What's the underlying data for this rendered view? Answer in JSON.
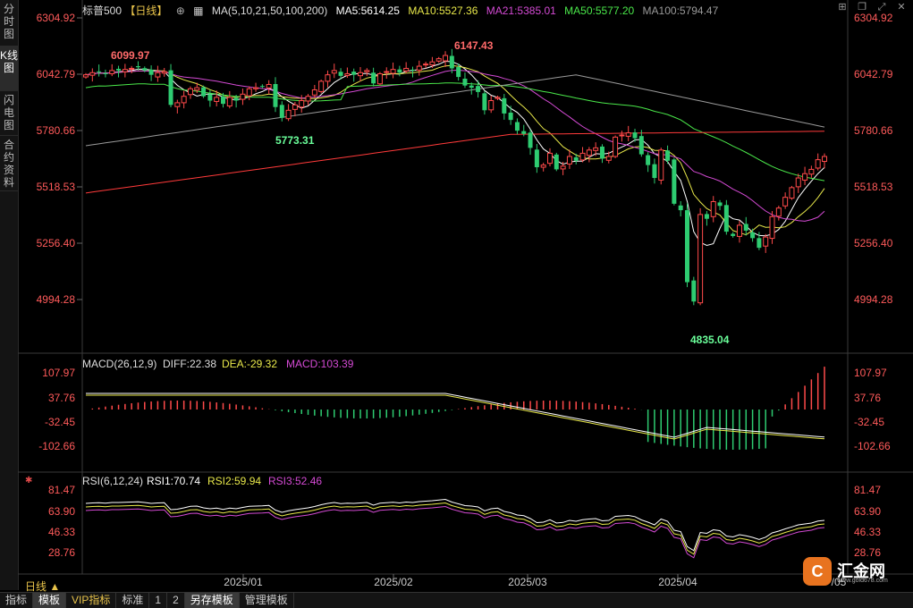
{
  "sidebar": {
    "tabs": [
      {
        "label": "分时图",
        "active": false
      },
      {
        "label": "K线图",
        "active": true
      },
      {
        "label": "闪电图",
        "active": false
      },
      {
        "label": "合约资料",
        "active": false
      }
    ]
  },
  "header": {
    "symbol": "标普500",
    "period": "【日线】",
    "ma_label": "MA(5,10,21,50,100,200)",
    "ma5": "MA5:5614.25",
    "ma10": "MA10:5527.36",
    "ma21": "MA21:5385.01",
    "ma50": "MA50:5577.20",
    "ma100": "MA100:5794.47"
  },
  "colors": {
    "up": "#ff4a4a",
    "down": "#2ecc71",
    "ma5": "#ffffff",
    "ma10": "#e8e84a",
    "ma21": "#d44ad4",
    "ma50": "#4ae84a",
    "ma100": "#9a9a9a",
    "ma200": "#ff3a3a",
    "axis": "#ff5a5a"
  },
  "price_axis": [
    "6304.92",
    "6042.79",
    "5780.66",
    "5518.53",
    "5256.40",
    "4994.28"
  ],
  "annotations": {
    "high1": "6099.97",
    "high2": "6147.43",
    "low1": "5773.31",
    "low2": "4835.04"
  },
  "macd": {
    "label": "MACD(26,12,9)",
    "diff": "DIFF:22.38",
    "dea": "DEA:-29.32",
    "macd": "MACD:103.39",
    "axis": [
      "107.97",
      "37.76",
      "-32.45",
      "-102.66"
    ]
  },
  "rsi": {
    "label": "RSI(6,12,24)",
    "rsi1": "RSI1:70.74",
    "rsi2": "RSI2:59.94",
    "rsi3": "RSI3:52.46",
    "axis": [
      "81.47",
      "63.90",
      "46.33",
      "28.76"
    ]
  },
  "x_axis": [
    "2025/01",
    "2025/02",
    "2025/03",
    "2025/04",
    "/05"
  ],
  "period_label": "日线 ▲",
  "bottom_tabs": [
    {
      "label": "指标",
      "active": false,
      "vip": false
    },
    {
      "label": "模板",
      "active": true,
      "vip": false
    },
    {
      "label": "VIP指标",
      "active": false,
      "vip": true
    },
    {
      "label": "标准",
      "active": false,
      "vip": false
    },
    {
      "label": "1",
      "active": false,
      "vip": false
    },
    {
      "label": "2",
      "active": false,
      "vip": false
    },
    {
      "label": "另存模板",
      "active": true,
      "vip": false
    },
    {
      "label": "管理模板",
      "active": false,
      "vip": false
    }
  ],
  "toolbar_icons": [
    "grid-icon",
    "restore-icon",
    "maximize-icon",
    "close-icon"
  ],
  "logo": {
    "text": "汇金网",
    "url": "www.gold678.com"
  }
}
